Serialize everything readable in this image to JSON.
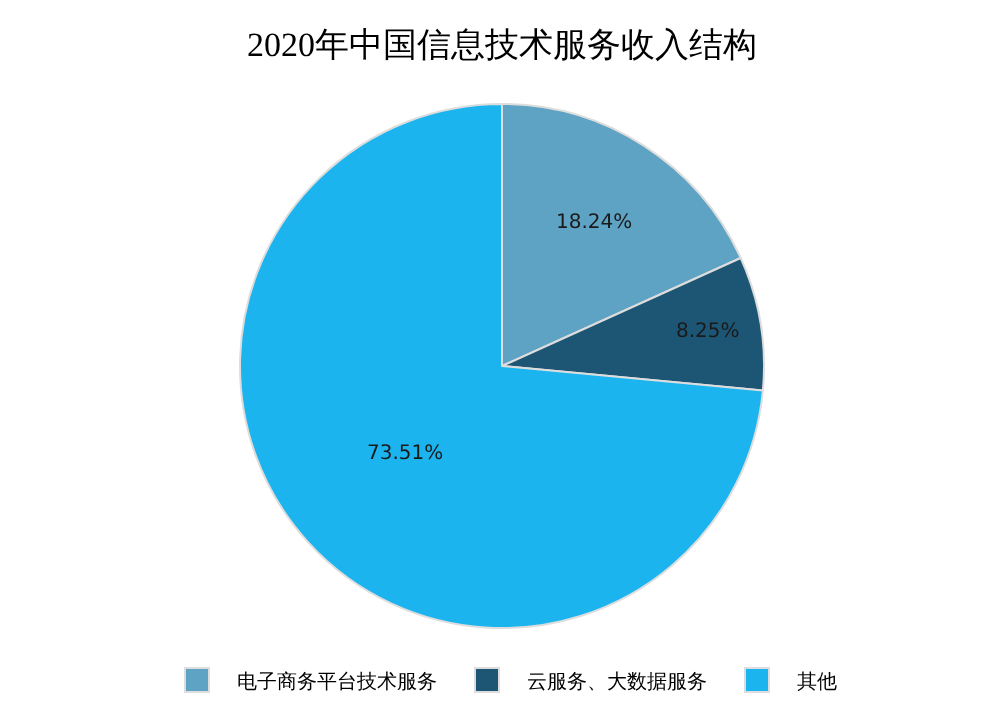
{
  "chart_data": {
    "type": "pie",
    "title": "2020年中国信息技术服务收入结构",
    "categories": [
      "电子商务平台技术服务",
      "云服务、大数据服务",
      "其他"
    ],
    "values": [
      18.24,
      8.25,
      73.51
    ],
    "value_labels": [
      "18.24%",
      "8.25%",
      "73.51%"
    ],
    "colors": [
      "#5fa3c4",
      "#1d5674",
      "#1bb4ef"
    ],
    "legend": "bottom"
  }
}
